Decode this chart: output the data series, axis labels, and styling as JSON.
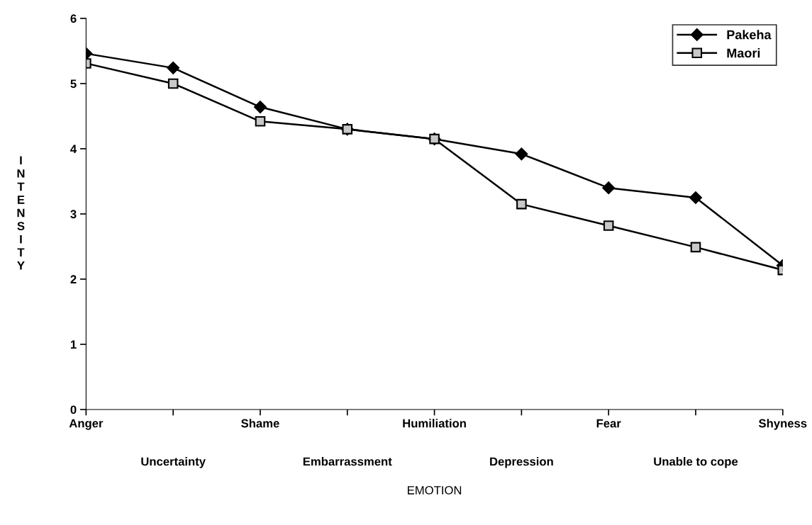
{
  "chart_data": {
    "type": "line",
    "xlabel": "EMOTION",
    "ylabel": "I\nN\nT\nE\nN\nS\nI\nT\nY",
    "categories": [
      "Anger",
      "Uncertainty",
      "Shame",
      "Embarrassment",
      "Humiliation",
      "Depression",
      "Fear",
      "Unable to cope",
      "Shyness"
    ],
    "series": [
      {
        "name": "Pakeha",
        "color": "#000000",
        "marker": "diamond",
        "values": [
          5.46,
          5.24,
          4.64,
          4.3,
          4.15,
          3.92,
          3.4,
          3.25,
          2.21
        ]
      },
      {
        "name": "Maori",
        "color": "#000000",
        "marker": "square",
        "values": [
          5.31,
          5.0,
          4.42,
          4.3,
          4.15,
          3.15,
          2.82,
          2.49,
          2.14
        ]
      }
    ],
    "ylim": [
      0,
      6
    ],
    "yticks": [
      0,
      1,
      2,
      3,
      4,
      5,
      6
    ],
    "grid": false,
    "legend": "top right",
    "line_style": "solid"
  }
}
